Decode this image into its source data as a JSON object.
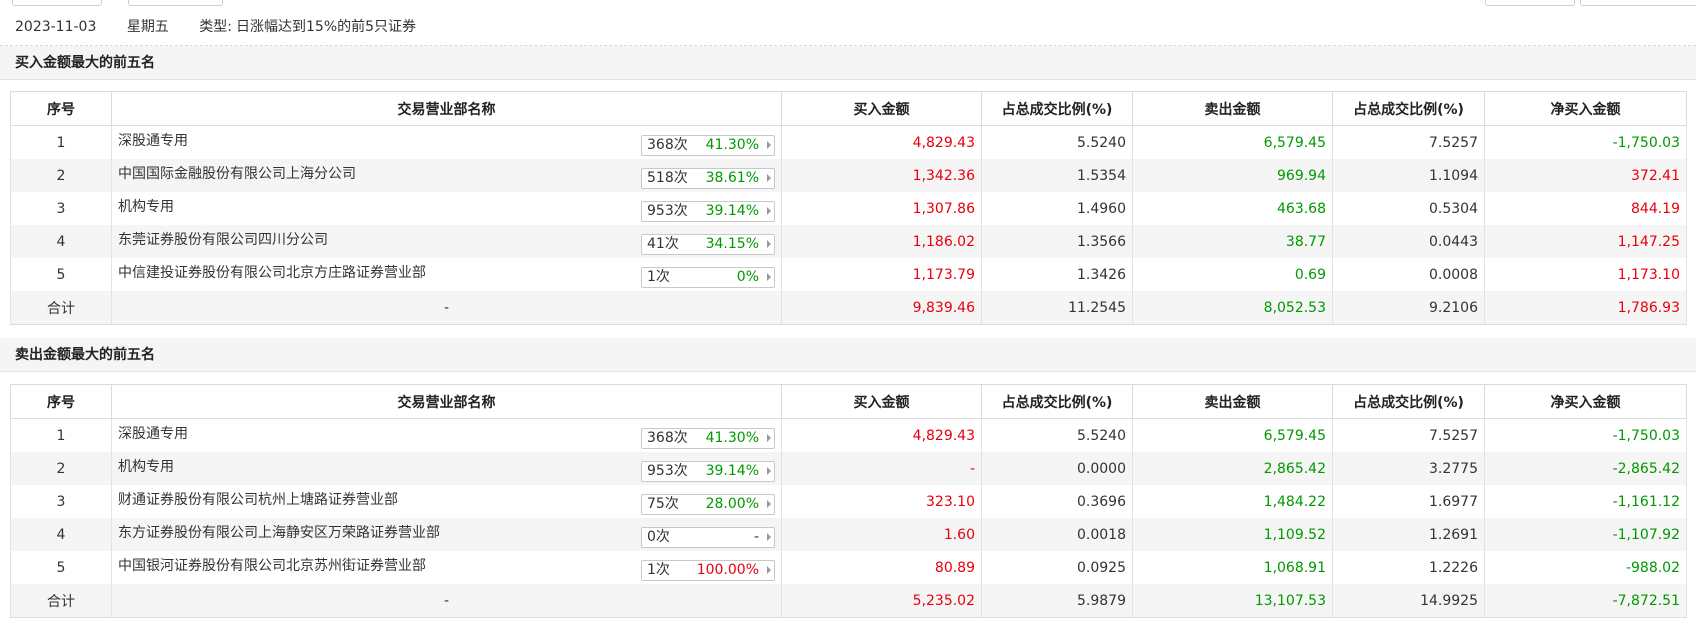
{
  "info": {
    "date": "2023-11-03",
    "weekday": "星期五",
    "type_label": "类型:",
    "type_value": "日涨幅达到15%的前5只证券"
  },
  "columns": [
    "序号",
    "交易营业部名称",
    "买入金额",
    "占总成交比例(%)",
    "卖出金额",
    "占总成交比例(%)",
    "净买入金额"
  ],
  "buy_section": {
    "title": "买入金额最大的前五名",
    "rows": [
      {
        "seq": "1",
        "name": "深股通专用",
        "count": "368次",
        "pct": "41.30%",
        "pct_color": "green",
        "buy": "4,829.43",
        "buy_ratio": "5.5240",
        "sell": "6,579.45",
        "sell_ratio": "7.5257",
        "net": "-1,750.03",
        "net_color": "green"
      },
      {
        "seq": "2",
        "name": "中国国际金融股份有限公司上海分公司",
        "count": "518次",
        "pct": "38.61%",
        "pct_color": "green",
        "buy": "1,342.36",
        "buy_ratio": "1.5354",
        "sell": "969.94",
        "sell_ratio": "1.1094",
        "net": "372.41",
        "net_color": "red"
      },
      {
        "seq": "3",
        "name": "机构专用",
        "count": "953次",
        "pct": "39.14%",
        "pct_color": "green",
        "buy": "1,307.86",
        "buy_ratio": "1.4960",
        "sell": "463.68",
        "sell_ratio": "0.5304",
        "net": "844.19",
        "net_color": "red"
      },
      {
        "seq": "4",
        "name": "东莞证券股份有限公司四川分公司",
        "count": "41次",
        "pct": "34.15%",
        "pct_color": "green",
        "buy": "1,186.02",
        "buy_ratio": "1.3566",
        "sell": "38.77",
        "sell_ratio": "0.0443",
        "net": "1,147.25",
        "net_color": "red"
      },
      {
        "seq": "5",
        "name": "中信建投证券股份有限公司北京方庄路证券营业部",
        "count": "1次",
        "pct": "0%",
        "pct_color": "green",
        "buy": "1,173.79",
        "buy_ratio": "1.3426",
        "sell": "0.69",
        "sell_ratio": "0.0008",
        "net": "1,173.10",
        "net_color": "red"
      }
    ],
    "total": {
      "label": "合计",
      "name": "-",
      "buy": "9,839.46",
      "buy_ratio": "11.2545",
      "sell": "8,052.53",
      "sell_ratio": "9.2106",
      "net": "1,786.93",
      "net_color": "red"
    }
  },
  "sell_section": {
    "title": "卖出金额最大的前五名",
    "rows": [
      {
        "seq": "1",
        "name": "深股通专用",
        "count": "368次",
        "pct": "41.30%",
        "pct_color": "green",
        "buy": "4,829.43",
        "buy_ratio": "5.5240",
        "sell": "6,579.45",
        "sell_ratio": "7.5257",
        "net": "-1,750.03",
        "net_color": "green"
      },
      {
        "seq": "2",
        "name": "机构专用",
        "count": "953次",
        "pct": "39.14%",
        "pct_color": "green",
        "buy": "-",
        "buy_ratio": "0.0000",
        "sell": "2,865.42",
        "sell_ratio": "3.2775",
        "net": "-2,865.42",
        "net_color": "green"
      },
      {
        "seq": "3",
        "name": "财通证券股份有限公司杭州上塘路证券营业部",
        "count": "75次",
        "pct": "28.00%",
        "pct_color": "green",
        "buy": "323.10",
        "buy_ratio": "0.3696",
        "sell": "1,484.22",
        "sell_ratio": "1.6977",
        "net": "-1,161.12",
        "net_color": "green"
      },
      {
        "seq": "4",
        "name": "东方证券股份有限公司上海静安区万荣路证券营业部",
        "count": "0次",
        "pct": "-",
        "pct_color": "plain",
        "buy": "1.60",
        "buy_ratio": "0.0018",
        "sell": "1,109.52",
        "sell_ratio": "1.2691",
        "net": "-1,107.92",
        "net_color": "green"
      },
      {
        "seq": "5",
        "name": "中国银河证券股份有限公司北京苏州街证券营业部",
        "count": "1次",
        "pct": "100.00%",
        "pct_color": "red",
        "buy": "80.89",
        "buy_ratio": "0.0925",
        "sell": "1,068.91",
        "sell_ratio": "1.2226",
        "net": "-988.02",
        "net_color": "green"
      }
    ],
    "total": {
      "label": "合计",
      "name": "-",
      "buy": "5,235.02",
      "buy_ratio": "5.9879",
      "sell": "13,107.53",
      "sell_ratio": "14.9925",
      "net": "-7,872.51",
      "net_color": "green"
    }
  },
  "colors": {
    "red": "#e8000b",
    "green": "#009900",
    "header_bg": "#f5f5f5"
  }
}
